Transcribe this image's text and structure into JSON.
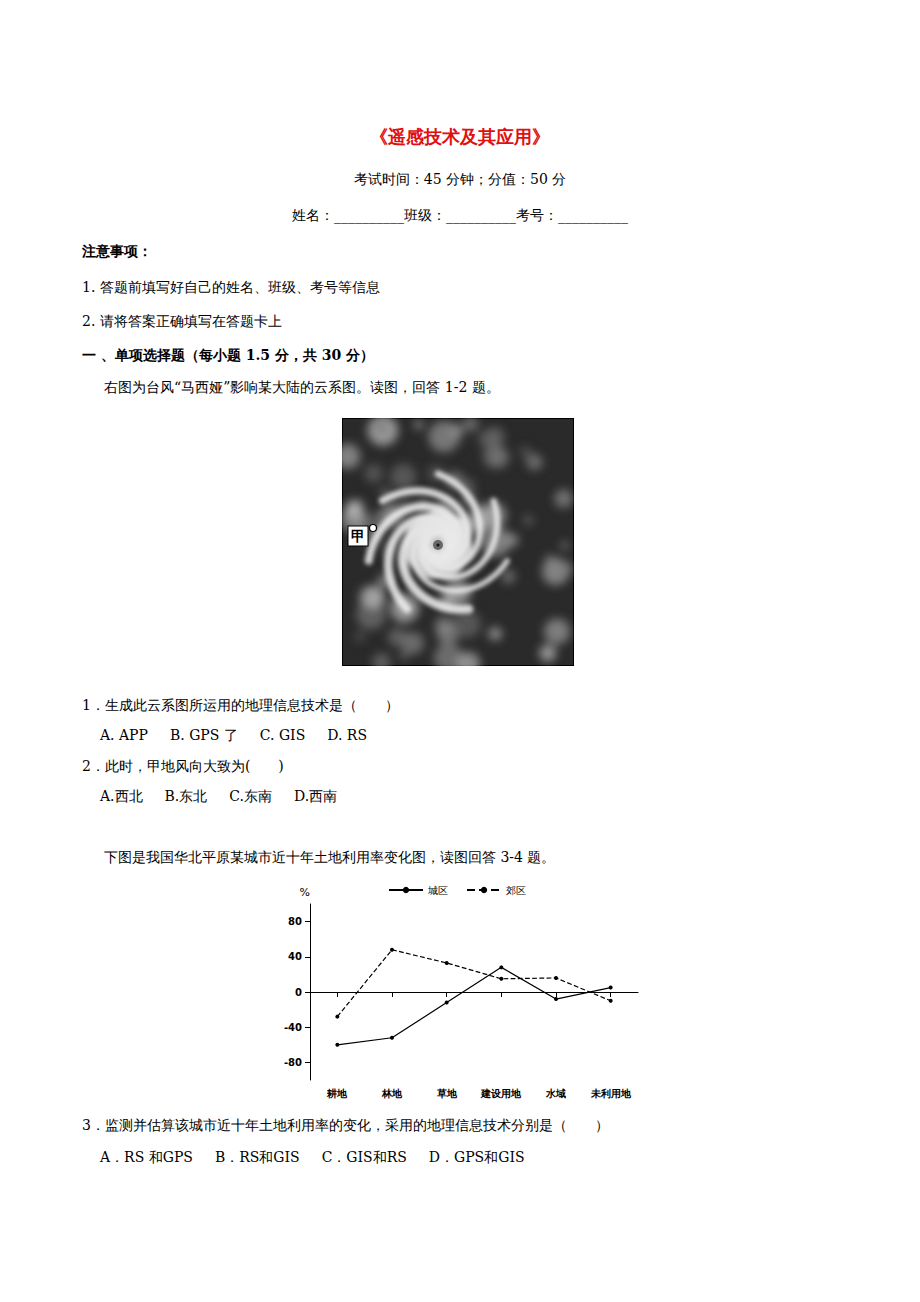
{
  "document": {
    "title": "《遥感技术及其应用》",
    "info": "考试时间：45 分钟；分值：50 分",
    "fields": "姓名：__________班级：__________考号：__________",
    "notes_heading": "注意事项：",
    "notes": [
      "1. 答题前填写好自己的姓名、班级、考号等信息",
      "2. 请将答案正确填写在答题卡上"
    ],
    "section": "一 、单项选择题（每小题 1.5 分，共 30 分）",
    "group1_intro": "右图为台风“马西娅”影响某大陆的云系图。读图，回答 1-2 题。",
    "image_label": "甲",
    "questions_group1": [
      {
        "stem": "1．生成此云系图所运用的地理信息技术是（　　）",
        "options": [
          "A. APP",
          "B. GPS 了",
          "C. GIS",
          "D. RS"
        ]
      },
      {
        "stem": "2．此时，甲地风向大致为(　　)",
        "options": [
          "A.西北",
          "B.东北",
          "C.东南",
          "D.西南"
        ]
      }
    ],
    "group2_intro": "下图是我国华北平原某城市近十年土地利用率变化图，读图回答 3-4 题。",
    "questions_group2": [
      {
        "stem": "3．监测并估算该城市近十年土地利用率的变化，采用的地理信息技术分别是（　　）",
        "options": [
          "A．RS 和GPS",
          "B．RS和GIS",
          "C．GIS和RS",
          "D．GPS和GIS"
        ]
      }
    ]
  },
  "chart_data": {
    "type": "line",
    "y_label": "%",
    "categories": [
      "耕地",
      "林地",
      "草地",
      "建设用地",
      "水域",
      "未利用地"
    ],
    "series": [
      {
        "name": "城区",
        "color": "#000000",
        "line_style": "solid",
        "marker": "circle",
        "values": [
          -60,
          -52,
          -12,
          28,
          -8,
          5
        ]
      },
      {
        "name": "郊区",
        "color": "#000000",
        "line_style": "dashed",
        "marker": "circle",
        "values": [
          -28,
          48,
          33,
          15,
          16,
          -10
        ]
      }
    ],
    "ylim": [
      -100,
      100
    ],
    "yticks": [
      -80,
      -40,
      0,
      40,
      80
    ],
    "grid": false,
    "legend": "top"
  }
}
